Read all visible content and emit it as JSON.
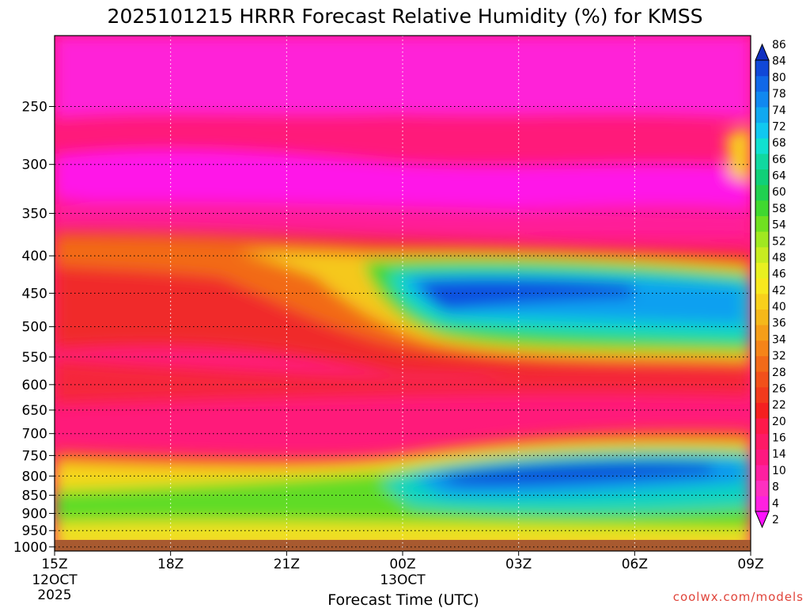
{
  "chart_data": {
    "type": "heatmap",
    "title": "2025101215 HRRR Forecast Relative Humidity (%) for KMSS",
    "xlabel": "Forecast Time (UTC)",
    "ylabel": "",
    "x_ticks": [
      {
        "label": "15Z",
        "sub": [
          "12OCT",
          "2025"
        ],
        "hour": 0
      },
      {
        "label": "18Z",
        "sub": [],
        "hour": 3
      },
      {
        "label": "21Z",
        "sub": [],
        "hour": 6
      },
      {
        "label": "00Z",
        "sub": [
          "13OCT"
        ],
        "hour": 9
      },
      {
        "label": "03Z",
        "sub": [],
        "hour": 12
      },
      {
        "label": "06Z",
        "sub": [],
        "hour": 15
      },
      {
        "label": "09Z",
        "sub": [],
        "hour": 18
      }
    ],
    "xlim": [
      0,
      18
    ],
    "y_ticks": [
      250,
      300,
      350,
      400,
      450,
      500,
      550,
      600,
      650,
      700,
      750,
      800,
      850,
      900,
      950,
      1000
    ],
    "ylim": [
      1013,
      200
    ],
    "y_scale": "log",
    "grid": true,
    "colorbar": {
      "levels": [
        2,
        4,
        8,
        10,
        14,
        16,
        20,
        22,
        26,
        28,
        32,
        34,
        36,
        40,
        42,
        46,
        48,
        52,
        54,
        58,
        60,
        64,
        66,
        68,
        72,
        74,
        78,
        80,
        84,
        86
      ],
      "colors": [
        "#ff10ff",
        "#ff20e0",
        "#ff30c0",
        "#ff1fa0",
        "#ff1880",
        "#ff1a66",
        "#ff1a4a",
        "#f52020",
        "#f23a1c",
        "#f2501a",
        "#f26a18",
        "#f58418",
        "#f59e18",
        "#f5b81a",
        "#f8d01c",
        "#f8e81e",
        "#e8f020",
        "#c8ec20",
        "#a0e820",
        "#70e020",
        "#40d830",
        "#20d050",
        "#10d078",
        "#10d8a0",
        "#10e0d0",
        "#10c8f0",
        "#10a8f0",
        "#1088f0",
        "#1068e8",
        "#1048d8",
        "#1030c0"
      ]
    },
    "ground_color": "#a85a30",
    "credit": "coolwx.com/models"
  }
}
